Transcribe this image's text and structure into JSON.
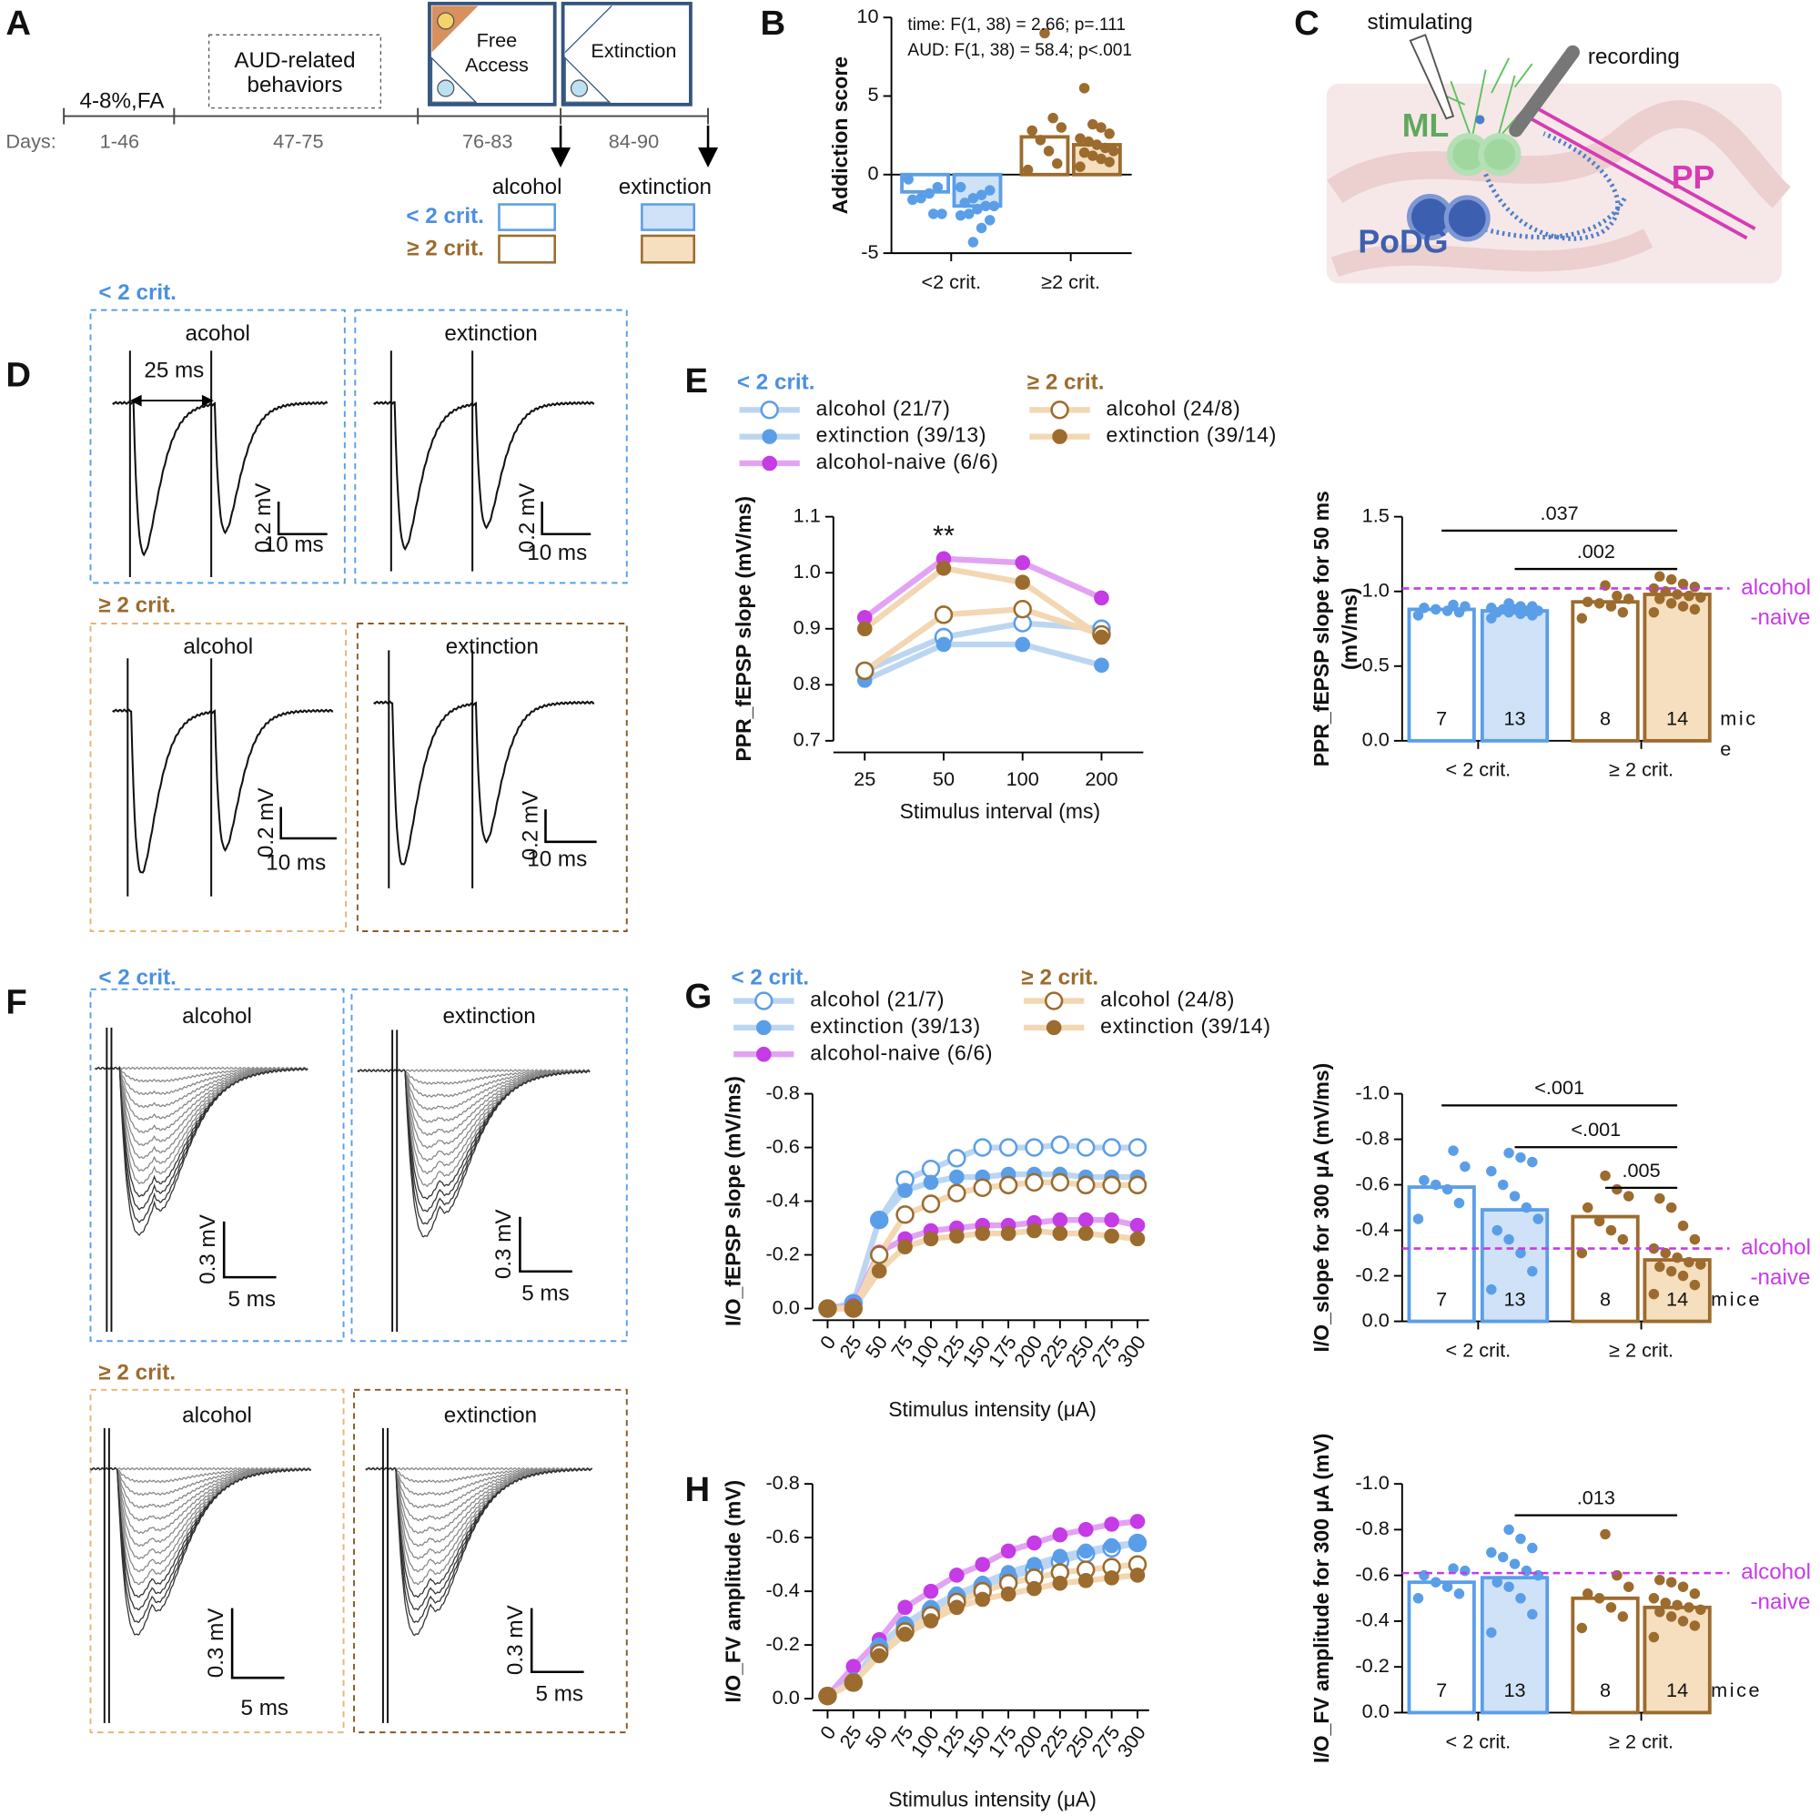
{
  "letters": [
    "A",
    "B",
    "C",
    "D",
    "E",
    "F",
    "G",
    "H"
  ],
  "panel_a": {
    "phases": [
      "4-8%,FA",
      "AUD-related",
      "behaviors",
      "Free",
      "Access",
      "Extinction"
    ],
    "days_label": "Days:",
    "days": [
      "1-46",
      "47-75",
      "76-83",
      "84-90"
    ],
    "key_columns": [
      "alcohol",
      "extinction"
    ],
    "key_rows": [
      "< 2 crit.",
      "≥ 2 crit."
    ]
  },
  "panel_c": {
    "labels": [
      "stimulating",
      "recording",
      "ML",
      "PP",
      "PoDG"
    ]
  },
  "panel_d": {
    "groups": [
      "< 2 crit.",
      "≥ 2 crit."
    ],
    "titles": [
      "acohol",
      "extinction",
      "alcohol",
      "extinction"
    ],
    "interval": "25 ms",
    "scale_y": "0.2 mV",
    "scale_x": "10 ms"
  },
  "panel_f": {
    "groups": [
      "< 2 crit.",
      "≥ 2 crit."
    ],
    "titles": [
      "alcohol",
      "extinction",
      "alcohol",
      "extinction"
    ],
    "scale_y": "0.3 mV",
    "scale_x": "5 ms"
  },
  "chart_data": [
    {
      "type": "bar",
      "annotations": [
        "time: F(1, 38) = 2.66; p=.111",
        "AUD: F(1, 38) = 58.4; p<.001"
      ],
      "ylabel": "Addiction score",
      "categories": [
        "<2 crit.",
        "≥2 crit."
      ],
      "colors": [
        "#5b9ee8",
        "#9c6b2e"
      ],
      "ylim": [
        -5,
        10
      ],
      "yticks": [
        -5,
        0,
        5,
        10
      ],
      "series": [
        {
          "fills": [
            "#ffffff",
            "#ffffff"
          ],
          "values": [
            -1.1,
            2.4
          ],
          "points": [
            [
              -0.3,
              -0.8,
              -1.2,
              -1.5,
              -1.6,
              -2.5,
              -2.5
            ],
            [
              0.3,
              0.7,
              1.5,
              2.2,
              2.8,
              3.0,
              3.6,
              9.0
            ]
          ]
        },
        {
          "fills": [
            "#cfe2f7",
            "#f6dfbf"
          ],
          "values": [
            -2.0,
            1.9
          ],
          "points": [
            [
              -0.8,
              -1.0,
              -1.3,
              -1.5,
              -1.8,
              -2.0,
              -2.0,
              -2.2,
              -2.5,
              -2.6,
              -2.9,
              -3.4,
              -4.3
            ],
            [
              0.5,
              0.8,
              1.0,
              1.2,
              1.4,
              1.5,
              1.7,
              1.9,
              2.1,
              2.3,
              2.6,
              3.0,
              3.2,
              5.5
            ]
          ]
        }
      ]
    },
    {
      "type": "line",
      "ylabel": "PPR_fEPSP slope (mV/ms)",
      "xlabel": "Stimulus interval (ms)",
      "legend_groups": [
        "< 2 crit.",
        "≥ 2 crit."
      ],
      "annotations": [
        "**"
      ],
      "categories": [
        "25",
        "50",
        "100",
        "200"
      ],
      "ylim": [
        0.7,
        1.1
      ],
      "yticks": [
        0.7,
        0.8,
        0.9,
        {
          "value": 1,
          "label": "1.0"
        },
        1.1
      ],
      "series": [
        {
          "name": "alcohol (21/7)",
          "color": "#5b9ee8",
          "line_color": "#bcd6f2",
          "marker": "open",
          "values": [
            0.825,
            0.885,
            0.91,
            0.9
          ]
        },
        {
          "name": "extinction (39/13)",
          "color": "#5b9ee8",
          "line_color": "#bcd6f2",
          "marker": "filled",
          "values": [
            0.808,
            0.872,
            0.872,
            0.835
          ]
        },
        {
          "name": "alcohol-naive (6/6)",
          "color": "#c53be6",
          "line_color": "#e3a3f3",
          "marker": "filled",
          "values": [
            0.92,
            1.025,
            1.018,
            0.955
          ]
        },
        {
          "name": "alcohol (24/8)",
          "color": "#9c6b2e",
          "line_color": "#f2d7b2",
          "marker": "open",
          "values": [
            0.825,
            0.925,
            0.935,
            0.89
          ]
        },
        {
          "name": "extinction (39/14)",
          "color": "#9c6b2e",
          "line_color": "#f2d7b2",
          "marker": "filled",
          "values": [
            0.9,
            1.008,
            0.983,
            0.885
          ]
        }
      ]
    },
    {
      "type": "bar",
      "ylabel": [
        "PPR_fEPSP slope for 50 ms",
        "(mV/ms)"
      ],
      "categories": [
        "< 2 crit.",
        "≥ 2 crit."
      ],
      "colors": [
        "#5b9ee8",
        "#9c6b2e"
      ],
      "ylim": [
        0,
        1.5
      ],
      "yticks": [
        {
          "value": 0,
          "label": "0.0"
        },
        0.5,
        {
          "value": 1,
          "label": "1.0"
        },
        1.5
      ],
      "reference": {
        "value": 1.02,
        "label": [
          "alcohol",
          "-naive"
        ],
        "color": "#c53be6"
      },
      "annotations": [
        ".037",
        ".002"
      ],
      "n_unit": [
        "mic",
        "e"
      ],
      "series": [
        {
          "fills": [
            "#ffffff",
            "#ffffff"
          ],
          "values": [
            0.88,
            0.93
          ],
          "n": [
            7,
            8
          ],
          "points": [
            [
              0.84,
              0.86,
              0.87,
              0.88,
              0.89,
              0.9,
              0.91
            ],
            [
              0.82,
              0.86,
              0.9,
              0.92,
              0.93,
              0.95,
              0.97,
              1.04
            ]
          ]
        },
        {
          "fills": [
            "#cfe2f7",
            "#f6dfbf"
          ],
          "values": [
            0.87,
            0.98
          ],
          "n": [
            13,
            14
          ],
          "points": [
            [
              0.82,
              0.84,
              0.85,
              0.86,
              0.86,
              0.87,
              0.87,
              0.88,
              0.88,
              0.89,
              0.9,
              0.9,
              0.92
            ],
            [
              0.86,
              0.88,
              0.9,
              0.92,
              0.95,
              0.96,
              0.97,
              0.98,
              1.0,
              1.02,
              1.03,
              1.05,
              1.08,
              1.1
            ]
          ]
        }
      ]
    },
    {
      "type": "line",
      "ylabel": "I/O_fEPSP slope (mV/ms)",
      "xlabel": "Stimulus intensity (μA)",
      "legend_groups": [
        "< 2 crit.",
        "≥ 2 crit."
      ],
      "x": [
        0,
        25,
        50,
        75,
        100,
        125,
        150,
        175,
        200,
        225,
        250,
        275,
        300
      ],
      "xlim": [
        0,
        300
      ],
      "xticks": [
        0,
        25,
        50,
        75,
        100,
        125,
        150,
        175,
        200,
        225,
        250,
        275,
        300
      ],
      "ylim": [
        0,
        -0.8
      ],
      "yticks": [
        {
          "value": 0,
          "label": "0.0"
        },
        -0.2,
        -0.4,
        -0.6,
        -0.8
      ],
      "series": [
        {
          "name": "alcohol (21/7)",
          "color": "#5b9ee8",
          "line_color": "#bcd6f2",
          "marker": "open",
          "values": [
            0,
            -0.02,
            -0.33,
            -0.48,
            -0.52,
            -0.56,
            -0.6,
            -0.6,
            -0.6,
            -0.61,
            -0.6,
            -0.6,
            -0.6
          ]
        },
        {
          "name": "extinction (39/13)",
          "color": "#5b9ee8",
          "line_color": "#bcd6f2",
          "marker": "filled",
          "values": [
            0,
            -0.02,
            -0.33,
            -0.44,
            -0.47,
            -0.49,
            -0.49,
            -0.5,
            -0.5,
            -0.5,
            -0.49,
            -0.49,
            -0.49
          ]
        },
        {
          "name": "alcohol-naive (6/6)",
          "color": "#c53be6",
          "line_color": "#e3a3f3",
          "marker": "filled",
          "values": [
            0,
            -0.01,
            -0.21,
            -0.26,
            -0.29,
            -0.3,
            -0.31,
            -0.31,
            -0.32,
            -0.33,
            -0.33,
            -0.33,
            -0.31
          ]
        },
        {
          "name": "alcohol (24/8)",
          "color": "#9c6b2e",
          "line_color": "#f2d7b2",
          "marker": "open",
          "values": [
            0,
            0,
            -0.2,
            -0.35,
            -0.39,
            -0.43,
            -0.45,
            -0.46,
            -0.47,
            -0.47,
            -0.46,
            -0.46,
            -0.46
          ]
        },
        {
          "name": "extinction (39/14)",
          "color": "#9c6b2e",
          "line_color": "#f2d7b2",
          "marker": "filled",
          "values": [
            0,
            0,
            -0.14,
            -0.23,
            -0.26,
            -0.27,
            -0.28,
            -0.28,
            -0.29,
            -0.28,
            -0.28,
            -0.27,
            -0.26
          ]
        }
      ]
    },
    {
      "type": "bar",
      "ylabel": "I/O_slope for 300 μA (mV/ms)",
      "categories": [
        "< 2 crit.",
        "≥ 2 crit."
      ],
      "colors": [
        "#5b9ee8",
        "#9c6b2e"
      ],
      "ylim": [
        0,
        -1
      ],
      "yticks": [
        {
          "value": 0,
          "label": "0.0"
        },
        -0.2,
        -0.4,
        -0.6,
        -0.8,
        {
          "value": -1,
          "label": "-1.0"
        }
      ],
      "reference": {
        "value": -0.32,
        "label": [
          "alcohol",
          "-naive"
        ],
        "color": "#c53be6"
      },
      "annotations": [
        "<.001",
        "<.001",
        ".005"
      ],
      "n_unit": "mice",
      "series": [
        {
          "fills": [
            "#ffffff",
            "#ffffff"
          ],
          "values": [
            -0.59,
            -0.46
          ],
          "n": [
            7,
            8
          ],
          "points": [
            [
              -0.45,
              -0.52,
              -0.58,
              -0.6,
              -0.62,
              -0.68,
              -0.75
            ],
            [
              -0.3,
              -0.36,
              -0.4,
              -0.44,
              -0.5,
              -0.55,
              -0.58,
              -0.64
            ]
          ]
        },
        {
          "fills": [
            "#cfe2f7",
            "#f6dfbf"
          ],
          "values": [
            -0.49,
            -0.27
          ],
          "n": [
            13,
            14
          ],
          "points": [
            [
              -0.14,
              -0.22,
              -0.3,
              -0.36,
              -0.4,
              -0.45,
              -0.5,
              -0.55,
              -0.6,
              -0.66,
              -0.7,
              -0.72,
              -0.74
            ],
            [
              -0.12,
              -0.16,
              -0.2,
              -0.22,
              -0.24,
              -0.25,
              -0.26,
              -0.28,
              -0.3,
              -0.32,
              -0.36,
              -0.42,
              -0.5,
              -0.54
            ]
          ]
        }
      ]
    },
    {
      "type": "line",
      "ylabel": "I/O_FV amplitude (mV)",
      "xlabel": "Stimulus intensity (μA)",
      "x": [
        0,
        25,
        50,
        75,
        100,
        125,
        150,
        175,
        200,
        225,
        250,
        275,
        300
      ],
      "xlim": [
        0,
        300
      ],
      "xticks": [
        0,
        25,
        50,
        75,
        100,
        125,
        150,
        175,
        200,
        225,
        250,
        275,
        300
      ],
      "ylim": [
        0,
        -0.8
      ],
      "yticks": [
        {
          "value": 0,
          "label": "0.0"
        },
        -0.2,
        -0.4,
        -0.6,
        -0.8
      ],
      "series": [
        {
          "color": "#c53be6",
          "line_color": "#e3a3f3",
          "marker": "filled",
          "values": [
            -0.01,
            -0.12,
            -0.22,
            -0.34,
            -0.4,
            -0.46,
            -0.5,
            -0.55,
            -0.58,
            -0.61,
            -0.63,
            -0.65,
            -0.66
          ]
        },
        {
          "color": "#5b9ee8",
          "line_color": "#bcd6f2",
          "marker": "open",
          "values": [
            -0.01,
            -0.06,
            -0.19,
            -0.27,
            -0.33,
            -0.38,
            -0.42,
            -0.45,
            -0.48,
            -0.51,
            -0.54,
            -0.56,
            -0.58
          ]
        },
        {
          "color": "#5b9ee8",
          "line_color": "#bcd6f2",
          "marker": "filled",
          "values": [
            -0.01,
            -0.07,
            -0.2,
            -0.28,
            -0.34,
            -0.39,
            -0.43,
            -0.47,
            -0.5,
            -0.53,
            -0.55,
            -0.57,
            -0.58
          ]
        },
        {
          "color": "#9c6b2e",
          "line_color": "#f2d7b2",
          "marker": "open",
          "values": [
            -0.01,
            -0.06,
            -0.17,
            -0.25,
            -0.31,
            -0.36,
            -0.4,
            -0.43,
            -0.45,
            -0.47,
            -0.48,
            -0.49,
            -0.5
          ]
        },
        {
          "color": "#9c6b2e",
          "line_color": "#f2d7b2",
          "marker": "filled",
          "values": [
            -0.01,
            -0.06,
            -0.16,
            -0.24,
            -0.29,
            -0.34,
            -0.37,
            -0.39,
            -0.41,
            -0.43,
            -0.44,
            -0.45,
            -0.46
          ]
        }
      ]
    },
    {
      "type": "bar",
      "ylabel": "I/O_FV amplitude for 300 μA (mV)",
      "categories": [
        "< 2 crit.",
        "≥ 2 crit."
      ],
      "colors": [
        "#5b9ee8",
        "#9c6b2e"
      ],
      "ylim": [
        0,
        -1
      ],
      "yticks": [
        {
          "value": 0,
          "label": "0.0"
        },
        -0.2,
        -0.4,
        -0.6,
        -0.8,
        {
          "value": -1,
          "label": "-1.0"
        }
      ],
      "reference": {
        "value": -0.61,
        "label": [
          "alcohol",
          "-naive"
        ],
        "color": "#c53be6"
      },
      "annotations": [
        ".013"
      ],
      "n_unit": "mice",
      "series": [
        {
          "fills": [
            "#ffffff",
            "#ffffff"
          ],
          "values": [
            -0.57,
            -0.5
          ],
          "n": [
            7,
            8
          ],
          "points": [
            [
              -0.5,
              -0.52,
              -0.55,
              -0.57,
              -0.6,
              -0.62,
              -0.63
            ],
            [
              -0.37,
              -0.42,
              -0.46,
              -0.5,
              -0.52,
              -0.55,
              -0.6,
              -0.78
            ]
          ]
        },
        {
          "fills": [
            "#cfe2f7",
            "#f6dfbf"
          ],
          "values": [
            -0.59,
            -0.46
          ],
          "n": [
            13,
            14
          ],
          "points": [
            [
              -0.35,
              -0.43,
              -0.5,
              -0.55,
              -0.57,
              -0.6,
              -0.62,
              -0.65,
              -0.68,
              -0.7,
              -0.72,
              -0.76,
              -0.8
            ],
            [
              -0.33,
              -0.38,
              -0.4,
              -0.42,
              -0.44,
              -0.45,
              -0.46,
              -0.47,
              -0.48,
              -0.5,
              -0.52,
              -0.55,
              -0.57,
              -0.58
            ]
          ]
        }
      ]
    }
  ]
}
